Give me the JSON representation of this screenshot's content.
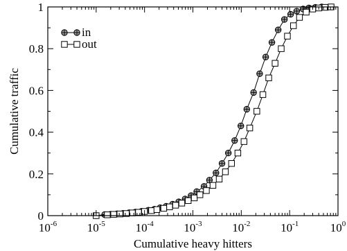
{
  "chart_data": {
    "type": "line",
    "title": "",
    "xlabel": "Cumulative heavy hitters",
    "ylabel": "Cumulative traffic",
    "xscale": "log",
    "xlim": [
      1e-06,
      1
    ],
    "ylim": [
      0,
      1
    ],
    "x_ticks": [
      {
        "base": "10",
        "exp": "-6",
        "value": 1e-06
      },
      {
        "base": "10",
        "exp": "-5",
        "value": 1e-05
      },
      {
        "base": "10",
        "exp": "-4",
        "value": 0.0001
      },
      {
        "base": "10",
        "exp": "-3",
        "value": 0.001
      },
      {
        "base": "10",
        "exp": "-2",
        "value": 0.01
      },
      {
        "base": "10",
        "exp": "-1",
        "value": 0.1
      },
      {
        "base": "10",
        "exp": "0",
        "value": 1
      }
    ],
    "y_ticks": [
      {
        "label": "0",
        "value": 0
      },
      {
        "label": "0.2",
        "value": 0.2
      },
      {
        "label": "0.4",
        "value": 0.4
      },
      {
        "label": "0.6",
        "value": 0.6
      },
      {
        "label": "0.8",
        "value": 0.8
      },
      {
        "label": "1",
        "value": 1
      }
    ],
    "grid": false,
    "legend_position": "top-left",
    "series": [
      {
        "name": "in",
        "marker": "crossed-circle",
        "marker_fill": "#999999",
        "line_color": "#000000",
        "points": [
          {
            "x": 1e-05,
            "y": 0.0
          },
          {
            "x": 1.5e-05,
            "y": 0.005
          },
          {
            "x": 2e-05,
            "y": 0.007
          },
          {
            "x": 2.7e-05,
            "y": 0.009
          },
          {
            "x": 3.6e-05,
            "y": 0.011
          },
          {
            "x": 4.8e-05,
            "y": 0.014
          },
          {
            "x": 6.5e-05,
            "y": 0.017
          },
          {
            "x": 8.7e-05,
            "y": 0.021
          },
          {
            "x": 0.00012,
            "y": 0.026
          },
          {
            "x": 0.00016,
            "y": 0.031
          },
          {
            "x": 0.00021,
            "y": 0.038
          },
          {
            "x": 0.00028,
            "y": 0.045
          },
          {
            "x": 0.00038,
            "y": 0.055
          },
          {
            "x": 0.00051,
            "y": 0.066
          },
          {
            "x": 0.00069,
            "y": 0.08
          },
          {
            "x": 0.00092,
            "y": 0.096
          },
          {
            "x": 0.0012,
            "y": 0.115
          },
          {
            "x": 0.0017,
            "y": 0.14
          },
          {
            "x": 0.0022,
            "y": 0.17
          },
          {
            "x": 0.003,
            "y": 0.205
          },
          {
            "x": 0.004,
            "y": 0.25
          },
          {
            "x": 0.0054,
            "y": 0.3
          },
          {
            "x": 0.0073,
            "y": 0.36
          },
          {
            "x": 0.0098,
            "y": 0.43
          },
          {
            "x": 0.013,
            "y": 0.51
          },
          {
            "x": 0.018,
            "y": 0.59
          },
          {
            "x": 0.024,
            "y": 0.68
          },
          {
            "x": 0.032,
            "y": 0.76
          },
          {
            "x": 0.043,
            "y": 0.83
          },
          {
            "x": 0.058,
            "y": 0.89
          },
          {
            "x": 0.078,
            "y": 0.94
          },
          {
            "x": 0.105,
            "y": 0.965
          },
          {
            "x": 0.14,
            "y": 0.98
          },
          {
            "x": 0.19,
            "y": 0.99
          },
          {
            "x": 0.25,
            "y": 0.995
          },
          {
            "x": 0.34,
            "y": 0.998
          },
          {
            "x": 0.46,
            "y": 1.0
          }
        ]
      },
      {
        "name": "out",
        "marker": "square",
        "marker_fill": "#ffffff",
        "line_color": "#000000",
        "points": [
          {
            "x": 1e-05,
            "y": 0.0
          },
          {
            "x": 1.7e-05,
            "y": 0.004
          },
          {
            "x": 2.3e-05,
            "y": 0.006
          },
          {
            "x": 3.1e-05,
            "y": 0.008
          },
          {
            "x": 4.2e-05,
            "y": 0.01
          },
          {
            "x": 5.6e-05,
            "y": 0.013
          },
          {
            "x": 7.5e-05,
            "y": 0.016
          },
          {
            "x": 0.0001,
            "y": 0.02
          },
          {
            "x": 0.00014,
            "y": 0.024
          },
          {
            "x": 0.00018,
            "y": 0.029
          },
          {
            "x": 0.00025,
            "y": 0.035
          },
          {
            "x": 0.00033,
            "y": 0.042
          },
          {
            "x": 0.00044,
            "y": 0.05
          },
          {
            "x": 0.00059,
            "y": 0.06
          },
          {
            "x": 0.0008,
            "y": 0.072
          },
          {
            "x": 0.00107,
            "y": 0.085
          },
          {
            "x": 0.0014,
            "y": 0.1
          },
          {
            "x": 0.0019,
            "y": 0.12
          },
          {
            "x": 0.0026,
            "y": 0.145
          },
          {
            "x": 0.0035,
            "y": 0.175
          },
          {
            "x": 0.0047,
            "y": 0.21
          },
          {
            "x": 0.0063,
            "y": 0.25
          },
          {
            "x": 0.0085,
            "y": 0.3
          },
          {
            "x": 0.0114,
            "y": 0.355
          },
          {
            "x": 0.015,
            "y": 0.42
          },
          {
            "x": 0.021,
            "y": 0.5
          },
          {
            "x": 0.028,
            "y": 0.58
          },
          {
            "x": 0.037,
            "y": 0.66
          },
          {
            "x": 0.05,
            "y": 0.73
          },
          {
            "x": 0.067,
            "y": 0.8
          },
          {
            "x": 0.09,
            "y": 0.86
          },
          {
            "x": 0.12,
            "y": 0.91
          },
          {
            "x": 0.16,
            "y": 0.95
          },
          {
            "x": 0.22,
            "y": 0.975
          },
          {
            "x": 0.3,
            "y": 0.99
          },
          {
            "x": 0.4,
            "y": 0.995
          },
          {
            "x": 0.54,
            "y": 0.998
          },
          {
            "x": 0.72,
            "y": 1.0
          }
        ]
      }
    ]
  }
}
